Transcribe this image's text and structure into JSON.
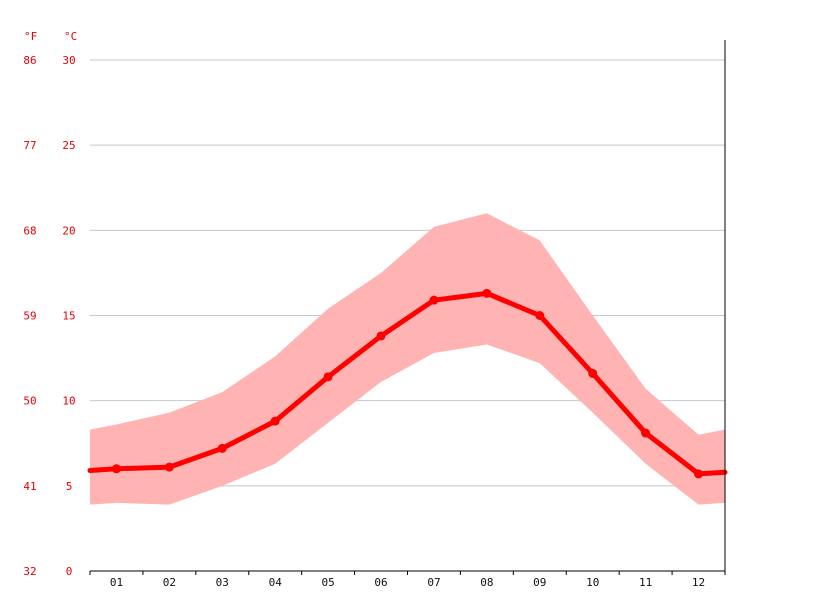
{
  "chart_data": {
    "type": "line",
    "title": "",
    "units": {
      "fahrenheit": "°F",
      "celsius": "°C"
    },
    "categories": [
      "01",
      "02",
      "03",
      "04",
      "05",
      "06",
      "07",
      "08",
      "09",
      "10",
      "11",
      "12"
    ],
    "yticks_celsius": [
      "0",
      "5",
      "10",
      "15",
      "20",
      "25",
      "30"
    ],
    "yticks_fahrenheit": [
      "32",
      "41",
      "50",
      "59",
      "68",
      "77",
      "86"
    ],
    "ylim": [
      0,
      30
    ],
    "grid": true,
    "series": [
      {
        "role": "mean",
        "color": "#ff0000",
        "values": [
          6.0,
          6.1,
          7.2,
          8.8,
          11.4,
          13.8,
          15.9,
          16.3,
          15.0,
          11.6,
          8.1,
          5.7
        ]
      },
      {
        "role": "band-max",
        "color": "#ffb3b3",
        "values": [
          8.6,
          9.3,
          10.5,
          12.6,
          15.4,
          17.5,
          20.2,
          21.0,
          19.4,
          15.0,
          10.7,
          8.0
        ]
      },
      {
        "role": "band-min",
        "color": "#ffb3b3",
        "values": [
          4.0,
          3.9,
          5.0,
          6.3,
          8.7,
          11.1,
          12.8,
          13.3,
          12.2,
          9.3,
          6.3,
          3.9
        ]
      }
    ]
  }
}
